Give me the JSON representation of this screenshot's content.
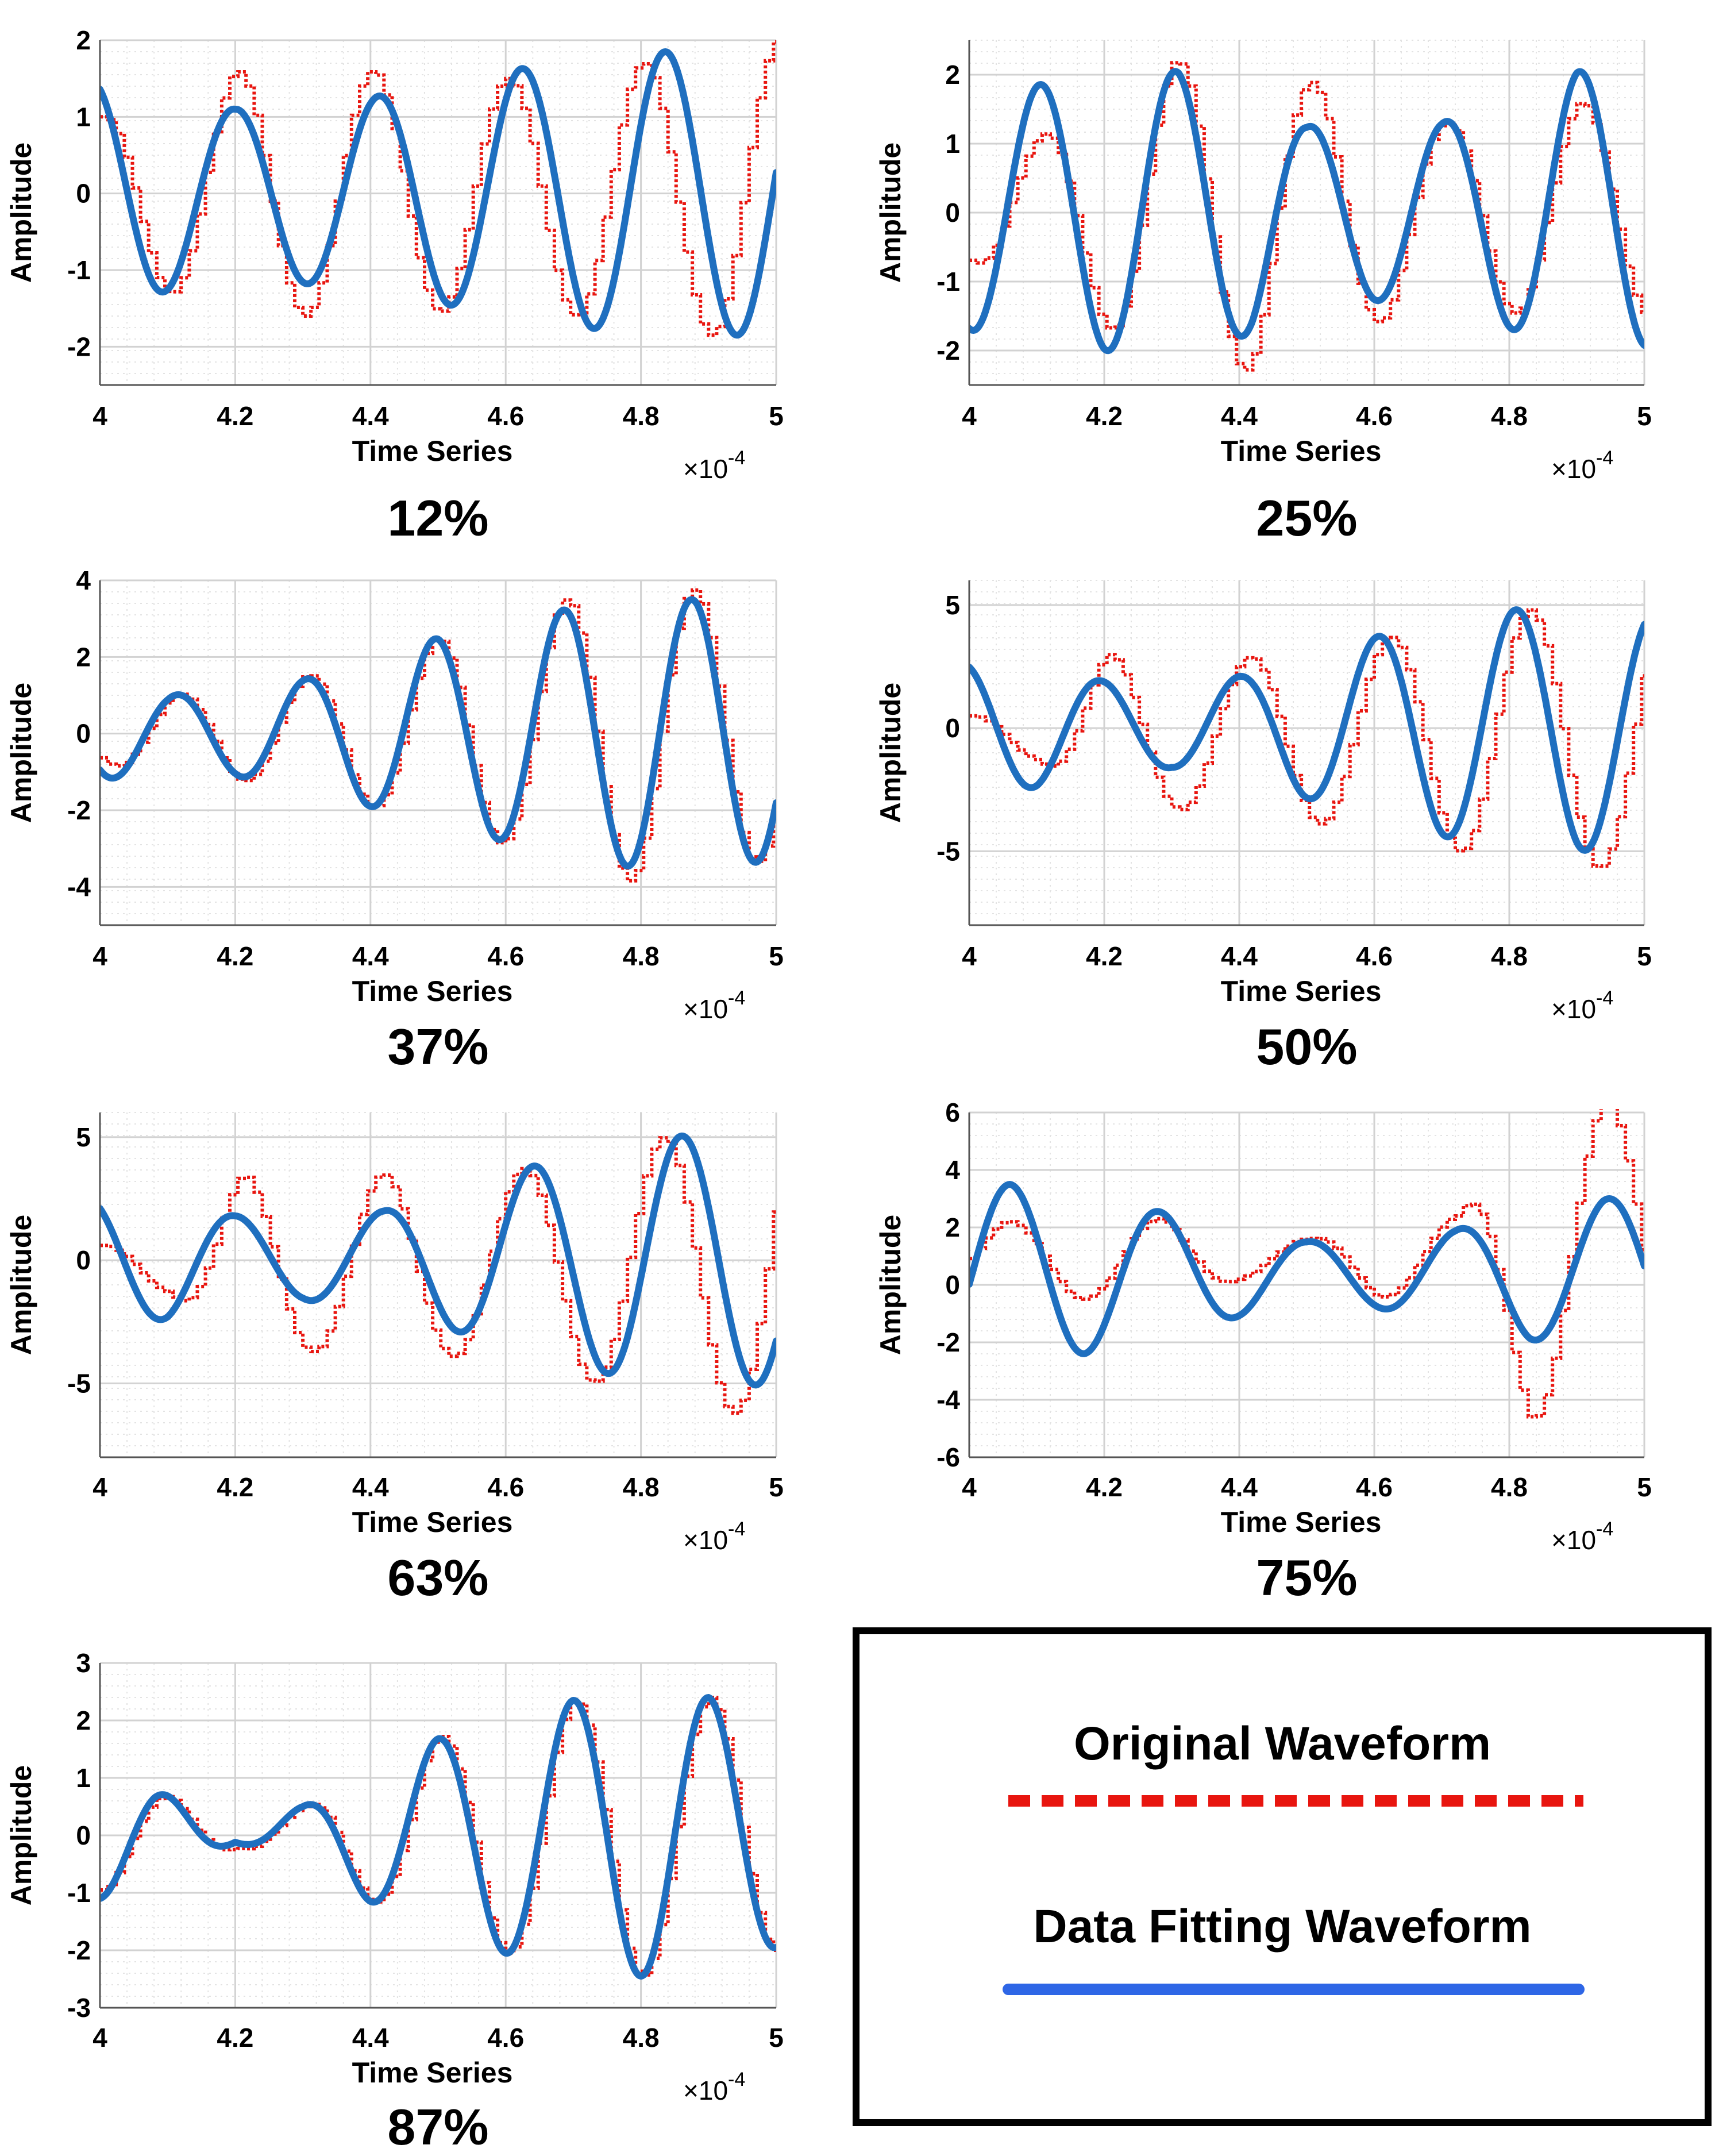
{
  "colors": {
    "original": "#e8150f",
    "fit": "#1f6fbf",
    "legend_fit": "#2e66e6",
    "grid_major": "#d2d2d2",
    "grid_minor": "#e3e3e3"
  },
  "legend": {
    "original_label": "Original Waveform",
    "fit_label": "Data Fitting Waveform"
  },
  "chart_data": [
    {
      "type": "line",
      "title": "12%",
      "xlabel": "Time Series",
      "ylabel": "Amplitude",
      "x_exponent": "×10",
      "x_exponent_power": "-4",
      "xlim": [
        4,
        5
      ],
      "ylim": [
        -2.5,
        2
      ],
      "yticks": [
        2,
        1,
        0,
        -1,
        -2
      ],
      "xticks": [
        "4",
        "4.2",
        "4.4",
        "4.6",
        "4.8",
        "5"
      ],
      "series": [
        {
          "name": "Original Waveform",
          "period": 0.2,
          "amp_points": [
            [
              4.0,
              1.0
            ],
            [
              4.2,
              1.6
            ],
            [
              4.4,
              1.6
            ],
            [
              4.6,
              1.5
            ],
            [
              4.8,
              1.7
            ],
            [
              5.0,
              2.0
            ]
          ],
          "phase_peak": 4.2,
          "offset": 0.0,
          "step": 0.012
        },
        {
          "name": "Data Fitting Waveform",
          "period": 0.212,
          "amp_points": [
            [
              4.0,
              1.45
            ],
            [
              4.2,
              1.1
            ],
            [
              4.4,
              1.25
            ],
            [
              4.6,
              1.6
            ],
            [
              4.8,
              1.85
            ],
            [
              5.0,
              1.85
            ]
          ],
          "phase_peak": 4.2,
          "offset": 0.0
        }
      ]
    },
    {
      "type": "line",
      "title": "25%",
      "xlabel": "Time Series",
      "ylabel": "Amplitude",
      "x_exponent": "×10",
      "x_exponent_power": "-4",
      "xlim": [
        4,
        5
      ],
      "ylim": [
        -2.5,
        2.5
      ],
      "yticks": [
        2,
        1,
        0,
        -1,
        -2
      ],
      "xticks": [
        "4",
        "4.2",
        "4.4",
        "4.6",
        "4.8",
        "5"
      ],
      "series": [
        {
          "name": "Original Waveform",
          "period": 0.2,
          "amp_points": [
            [
              4.0,
              0.7
            ],
            [
              4.1,
              1.1
            ],
            [
              4.3,
              2.2
            ],
            [
              4.42,
              2.3
            ],
            [
              4.5,
              1.9
            ],
            [
              4.7,
              1.3
            ],
            [
              4.9,
              1.6
            ],
            [
              5.0,
              1.5
            ]
          ],
          "phase_peak": 4.305,
          "offset": 0.0,
          "step": 0.012
        },
        {
          "name": "Data Fitting Waveform",
          "period": 0.2,
          "amp_points": [
            [
              4.0,
              1.7
            ],
            [
              4.2,
              2.0
            ],
            [
              4.31,
              2.05
            ],
            [
              4.42,
              1.75
            ],
            [
              4.5,
              1.25
            ],
            [
              4.7,
              1.3
            ],
            [
              4.9,
              2.05
            ],
            [
              5.0,
              1.95
            ]
          ],
          "phase_peak": 4.305,
          "offset": 0.0
        }
      ]
    },
    {
      "type": "line",
      "title": "37%",
      "xlabel": "Time Series",
      "ylabel": "Amplitude",
      "x_exponent": "×10",
      "x_exponent_power": "-4",
      "xlim": [
        4,
        5
      ],
      "ylim": [
        -5,
        4
      ],
      "yticks": [
        4,
        2,
        0,
        -2,
        -4
      ],
      "xticks": [
        "4",
        "4.2",
        "4.4",
        "4.6",
        "4.8",
        "5"
      ],
      "series": [
        {
          "name": "Original Waveform",
          "period": 0.19,
          "amp_points": [
            [
              4.0,
              0.8
            ],
            [
              4.1,
              1.0
            ],
            [
              4.2,
              1.2
            ],
            [
              4.3,
              1.5
            ],
            [
              4.4,
              1.9
            ],
            [
              4.5,
              2.5
            ],
            [
              4.6,
              2.9
            ],
            [
              4.7,
              3.6
            ],
            [
              4.8,
              3.9
            ],
            [
              4.9,
              3.7
            ],
            [
              5.0,
              3.2
            ]
          ],
          "phase_peak": 4.115,
          "offset": 0.0,
          "step": 0.012
        },
        {
          "name": "Data Fitting Waveform",
          "period": 0.19,
          "amp_points": [
            [
              4.0,
              1.2
            ],
            [
              4.1,
              1.0
            ],
            [
              4.2,
              1.1
            ],
            [
              4.3,
              1.4
            ],
            [
              4.4,
              1.9
            ],
            [
              4.5,
              2.5
            ],
            [
              4.6,
              2.8
            ],
            [
              4.7,
              3.3
            ],
            [
              4.8,
              3.5
            ],
            [
              4.9,
              3.5
            ],
            [
              5.0,
              3.3
            ]
          ],
          "phase_peak": 4.115,
          "offset": 0.0
        }
      ]
    },
    {
      "type": "line",
      "title": "50%",
      "xlabel": "Time Series",
      "ylabel": "Amplitude",
      "x_exponent": "×10",
      "x_exponent_power": "-4",
      "xlim": [
        4,
        5
      ],
      "ylim": [
        -8,
        6
      ],
      "yticks": [
        5,
        0,
        -5
      ],
      "xticks": [
        "4",
        "4.2",
        "4.4",
        "4.6",
        "4.8",
        "5"
      ],
      "series": [
        {
          "name": "Original Waveform",
          "period": 0.207,
          "amp_points": [
            [
              4.0,
              0.8
            ],
            [
              4.1,
              1.0
            ],
            [
              4.2,
              3.3
            ],
            [
              4.3,
              3.0
            ],
            [
              4.42,
              3.2
            ],
            [
              4.52,
              3.6
            ],
            [
              4.62,
              4.0
            ],
            [
              4.75,
              4.9
            ],
            [
              4.9,
              5.3
            ],
            [
              5.0,
              5.6
            ]
          ],
          "phase_peak": 4.205,
          "offset": -0.3,
          "step": 0.012
        },
        {
          "name": "Data Fitting Waveform",
          "period": 0.205,
          "amp_points": [
            [
              4.0,
              2.6
            ],
            [
              4.1,
              2.4
            ],
            [
              4.2,
              1.9
            ],
            [
              4.3,
              1.6
            ],
            [
              4.42,
              2.2
            ],
            [
              4.52,
              3.0
            ],
            [
              4.65,
              4.1
            ],
            [
              4.76,
              4.7
            ],
            [
              4.9,
              5.0
            ],
            [
              5.0,
              4.7
            ]
          ],
          "phase_peak": 4.195,
          "offset": 0.0
        }
      ]
    },
    {
      "type": "line",
      "title": "63%",
      "xlabel": "Time Series",
      "ylabel": "Amplitude",
      "x_exponent": "×10",
      "x_exponent_power": "-4",
      "xlim": [
        4,
        5
      ],
      "ylim": [
        -8,
        6
      ],
      "yticks": [
        5,
        0,
        -5
      ],
      "xticks": [
        "4",
        "4.2",
        "4.4",
        "4.6",
        "4.8",
        "5"
      ],
      "series": [
        {
          "name": "Original Waveform",
          "period": 0.207,
          "amp_points": [
            [
              4.0,
              0.9
            ],
            [
              4.1,
              1.0
            ],
            [
              4.21,
              3.8
            ],
            [
              4.31,
              3.4
            ],
            [
              4.42,
              3.8
            ],
            [
              4.52,
              3.6
            ],
            [
              4.62,
              4.0
            ],
            [
              4.78,
              5.0
            ],
            [
              4.92,
              5.8
            ],
            [
              5.0,
              6.5
            ]
          ],
          "phase_peak": 4.208,
          "offset": -0.3,
          "step": 0.012
        },
        {
          "name": "Data Fitting Waveform",
          "period": 0.22,
          "amp_points": [
            [
              4.0,
              2.5
            ],
            [
              4.1,
              2.4
            ],
            [
              4.2,
              1.8
            ],
            [
              4.3,
              1.6
            ],
            [
              4.42,
              2.0
            ],
            [
              4.53,
              2.9
            ],
            [
              4.65,
              3.9
            ],
            [
              4.78,
              4.8
            ],
            [
              4.91,
              5.2
            ],
            [
              5.0,
              5.0
            ]
          ],
          "phase_peak": 4.2,
          "offset": 0.0
        }
      ]
    },
    {
      "type": "line",
      "title": "75%",
      "xlabel": "Time Series",
      "ylabel": "Amplitude",
      "x_exponent": "×10",
      "x_exponent_power": "-4",
      "xlim": [
        4,
        5
      ],
      "ylim": [
        -6,
        6
      ],
      "yticks": [
        6,
        4,
        2,
        0,
        -2,
        -4,
        -6
      ],
      "xticks": [
        "4",
        "4.2",
        "4.4",
        "4.6",
        "4.8",
        "5"
      ],
      "series": [
        {
          "name": "Original Waveform",
          "period": 0.222,
          "amp_points": [
            [
              4.0,
              1.0
            ],
            [
              4.05,
              1.3
            ],
            [
              4.16,
              1.4
            ],
            [
              4.28,
              1.4
            ],
            [
              4.4,
              0.7
            ],
            [
              4.5,
              0.7
            ],
            [
              4.6,
              1.3
            ],
            [
              4.72,
              1.5
            ],
            [
              4.83,
              5.6
            ],
            [
              4.94,
              5.6
            ],
            [
              5.0,
              4.5
            ]
          ],
          "phase_peak": 4.055,
          "offset": 0.9,
          "step": 0.012
        },
        {
          "name": "Data Fitting Waveform",
          "period": 0.222,
          "amp_points": [
            [
              4.0,
              3.0
            ],
            [
              4.06,
              3.1
            ],
            [
              4.17,
              2.8
            ],
            [
              4.29,
              2.1
            ],
            [
              4.4,
              1.5
            ],
            [
              4.5,
              1.1
            ],
            [
              4.6,
              1.2
            ],
            [
              4.72,
              1.5
            ],
            [
              4.83,
              2.3
            ],
            [
              4.94,
              2.6
            ],
            [
              5.0,
              2.6
            ]
          ],
          "phase_peak": 4.06,
          "offset": 0.4
        }
      ]
    },
    {
      "type": "line",
      "title": "87%",
      "xlabel": "Time Series",
      "ylabel": "Amplitude",
      "x_exponent": "×10",
      "x_exponent_power": "-4",
      "xlim": [
        4,
        5
      ],
      "ylim": [
        -3,
        3
      ],
      "yticks": [
        3,
        2,
        1,
        0,
        -1,
        -2,
        -3
      ],
      "xticks": [
        "4",
        "4.2",
        "4.4",
        "4.6",
        "4.8",
        "5"
      ],
      "series": [
        {
          "name": "Original Waveform",
          "period": 0.2,
          "amp_points": [
            [
              4.0,
              0.95
            ],
            [
              4.08,
              0.75
            ],
            [
              4.2,
              0.22
            ],
            [
              4.3,
              0.5
            ],
            [
              4.4,
              1.15
            ],
            [
              4.5,
              1.72
            ],
            [
              4.6,
              2.05
            ],
            [
              4.7,
              2.35
            ],
            [
              4.8,
              2.45
            ],
            [
              4.9,
              2.4
            ],
            [
              5.0,
              2.0
            ]
          ],
          "phase_peak": 4.3,
          "offset": 0.0,
          "step": 0.012
        },
        {
          "name": "Data Fitting Waveform",
          "period": 0.2,
          "amp_points": [
            [
              4.0,
              1.1
            ],
            [
              4.08,
              0.8
            ],
            [
              4.2,
              0.12
            ],
            [
              4.3,
              0.5
            ],
            [
              4.4,
              1.15
            ],
            [
              4.5,
              1.68
            ],
            [
              4.6,
              2.05
            ],
            [
              4.7,
              2.35
            ],
            [
              4.8,
              2.45
            ],
            [
              4.9,
              2.4
            ],
            [
              5.0,
              1.95
            ]
          ],
          "phase_peak": 4.3,
          "offset": 0.0
        }
      ]
    }
  ]
}
